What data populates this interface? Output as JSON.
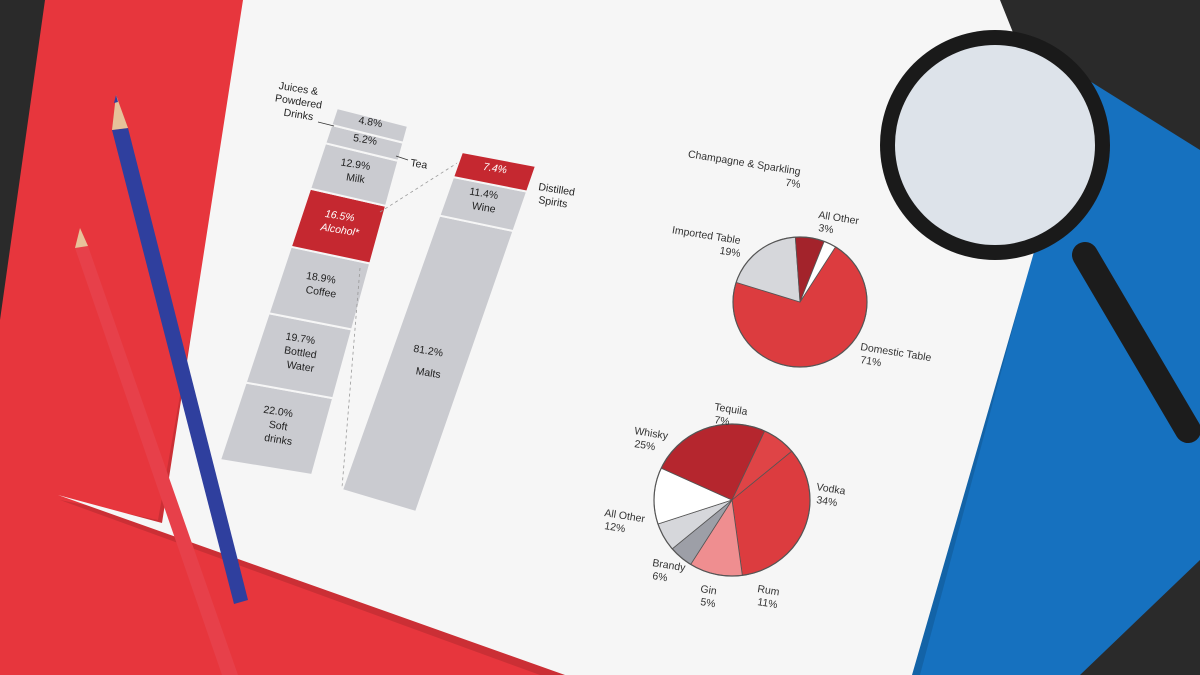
{
  "chart_data": [
    {
      "type": "bar",
      "subtype": "stacked-100",
      "categories": [
        "Soft drinks",
        "Bottled Water",
        "Coffee",
        "Alcohol*",
        "Milk",
        "Tea",
        "Juices & Powdered Drinks"
      ],
      "values": [
        22.0,
        19.7,
        18.9,
        16.5,
        12.9,
        5.2,
        4.8
      ],
      "value_labels": [
        "22.0%",
        "19.7%",
        "18.9%",
        "16.5%",
        "12.9%",
        "5.2%",
        "4.8%"
      ],
      "segment_labels": [
        "Soft drinks",
        "Bottled Water",
        "Coffee",
        "Alcohol*",
        "Milk",
        "",
        ""
      ],
      "callouts": {
        "tea": "Tea",
        "juices": [
          "Juices &",
          "Powdered",
          "Drinks"
        ]
      },
      "highlight": "Alcohol*",
      "colors": {
        "base": "#cacbd0",
        "highlight": "#c52830"
      }
    },
    {
      "type": "bar",
      "subtype": "stacked-100",
      "categories": [
        "Malts",
        "Wine",
        "Distilled Spirits"
      ],
      "values": [
        81.2,
        11.4,
        7.4
      ],
      "value_labels": [
        "81.2%",
        "11.4%",
        "7.4%"
      ],
      "segment_labels": [
        "Malts",
        "Wine",
        ""
      ],
      "callouts": {
        "spirits": [
          "Distilled",
          "Spirits"
        ]
      },
      "highlight": "Distilled Spirits",
      "colors": {
        "base": "#cacbd0",
        "highlight": "#c52830"
      }
    },
    {
      "type": "pie",
      "labels": [
        "Domestic Table",
        "Imported Table",
        "Champagne & Sparkling",
        "All Other"
      ],
      "values": [
        71,
        19,
        7,
        3
      ],
      "value_labels": [
        "71%",
        "19%",
        "7%",
        "3%"
      ],
      "colors": [
        "#dc3c3f",
        "#d6d7db",
        "#a3232b",
        "#ffffff"
      ]
    },
    {
      "type": "pie",
      "labels": [
        "Vodka",
        "Rum",
        "Gin",
        "Brandy",
        "All Other",
        "Whisky",
        "Tequila"
      ],
      "values": [
        34,
        11,
        5,
        6,
        12,
        25,
        7
      ],
      "value_labels": [
        "34%",
        "11%",
        "5%",
        "6%",
        "12%",
        "25%",
        "7%"
      ],
      "colors": [
        "#dc3c3f",
        "#ef8e90",
        "#9d9fa7",
        "#d6d7db",
        "#ffffff",
        "#b5262e",
        "#df4446"
      ]
    }
  ]
}
